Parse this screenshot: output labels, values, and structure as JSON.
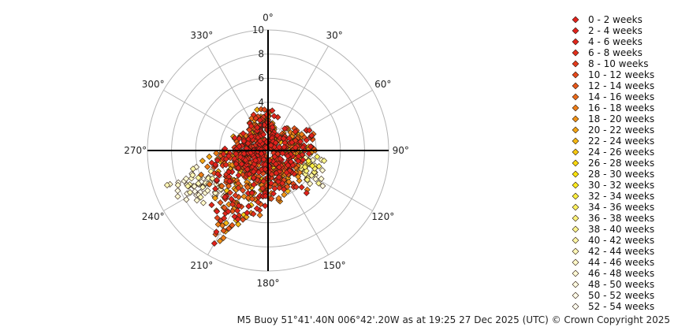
{
  "chart_data": {
    "type": "scatter",
    "subtype": "polar",
    "radial_axis": {
      "range": [
        0,
        10
      ],
      "ticks": [
        2,
        4,
        6,
        8,
        10
      ],
      "tick_labels": [
        "2",
        "4",
        "6",
        "8",
        "10"
      ]
    },
    "angular_axis": {
      "direction": "clockwise",
      "zero_at": "top",
      "ticks": [
        0,
        30,
        60,
        90,
        120,
        150,
        180,
        210,
        240,
        270,
        300,
        330
      ],
      "tick_labels": [
        "0°",
        "30°",
        "60°",
        "90°",
        "120°",
        "150°",
        "180°",
        "210°",
        "240°",
        "270°",
        "300°",
        "330°"
      ]
    },
    "grid": true,
    "legend_position": "right",
    "series_names": [
      "0 - 2 weeks",
      "2 - 4 weeks",
      "4 - 6 weeks",
      "6 - 8 weeks",
      "8 - 10 weeks",
      "10 - 12 weeks",
      "12 - 14 weeks",
      "14 - 16 weeks",
      "16 - 18 weeks",
      "18 - 20 weeks",
      "20 - 22 weeks",
      "22 - 24 weeks",
      "24 - 26 weeks",
      "26 - 28 weeks",
      "28 - 30 weeks",
      "30 - 32 weeks",
      "32 - 34 weeks",
      "34 - 36 weeks",
      "36 - 38 weeks",
      "38 - 40 weeks",
      "40 - 42 weeks",
      "42 - 44 weeks",
      "44 - 46 weeks",
      "46 - 48 weeks",
      "48 - 50 weeks",
      "50 - 52 weeks",
      "52 - 54 weeks"
    ],
    "series_colors": [
      "#e2211c",
      "#e2211c",
      "#e2261c",
      "#e32f1c",
      "#e4391c",
      "#e6481b",
      "#e8571a",
      "#eb6a19",
      "#ee7e18",
      "#f09216",
      "#f3a514",
      "#f5b812",
      "#f7c910",
      "#f9d90e",
      "#fae40c",
      "#fbec20",
      "#fcf040",
      "#fcf260",
      "#fdf47a",
      "#fdf690",
      "#fef7a6",
      "#fef8b8",
      "#fff9c8",
      "#fffad4",
      "#fffbe0",
      "#fffce8",
      "#fffdf0"
    ],
    "points_theta_r": [
      [
        200,
        6.1
      ],
      [
        204,
        5.9
      ],
      [
        207,
        5.6
      ],
      [
        212,
        5.1
      ],
      [
        216,
        4.6
      ],
      [
        219,
        4.2
      ],
      [
        223,
        3.8
      ],
      [
        228,
        4.4
      ],
      [
        233,
        4.9
      ],
      [
        238,
        4.1
      ],
      [
        243,
        3.6
      ],
      [
        248,
        3.2
      ],
      [
        253,
        2.9
      ],
      [
        258,
        2.6
      ],
      [
        262,
        2.3
      ],
      [
        267,
        1.9
      ],
      [
        272,
        1.6
      ],
      [
        277,
        1.4
      ],
      [
        285,
        1.2
      ],
      [
        295,
        1.1
      ],
      [
        305,
        1.0
      ],
      [
        320,
        1.3
      ],
      [
        335,
        2.1
      ],
      [
        345,
        2.6
      ],
      [
        352,
        2.8
      ],
      [
        0,
        2.5
      ],
      [
        8,
        2.1
      ],
      [
        18,
        1.6
      ],
      [
        35,
        1.4
      ],
      [
        50,
        1.8
      ],
      [
        60,
        2.3
      ],
      [
        68,
        3.0
      ],
      [
        75,
        3.3
      ],
      [
        82,
        3.0
      ],
      [
        90,
        2.5
      ],
      [
        97,
        2.6
      ],
      [
        105,
        3.0
      ],
      [
        112,
        3.4
      ],
      [
        118,
        3.6
      ],
      [
        125,
        3.2
      ],
      [
        132,
        2.9
      ],
      [
        140,
        2.6
      ],
      [
        148,
        2.4
      ],
      [
        155,
        2.7
      ],
      [
        162,
        3.0
      ],
      [
        170,
        3.2
      ],
      [
        177,
        3.0
      ],
      [
        184,
        3.4
      ],
      [
        190,
        3.8
      ],
      [
        195,
        4.2
      ],
      [
        210,
        3.4
      ],
      [
        220,
        2.8
      ],
      [
        230,
        2.2
      ],
      [
        240,
        2.6
      ],
      [
        250,
        2.1
      ],
      [
        260,
        1.7
      ],
      [
        270,
        1.2
      ],
      [
        280,
        0.9
      ],
      [
        290,
        0.6
      ],
      [
        315,
        0.7
      ],
      [
        340,
        1.5
      ],
      [
        10,
        1.2
      ],
      [
        45,
        0.9
      ],
      [
        80,
        1.5
      ],
      [
        100,
        1.9
      ],
      [
        120,
        2.1
      ],
      [
        140,
        1.8
      ],
      [
        160,
        2.0
      ],
      [
        180,
        2.2
      ],
      [
        200,
        2.6
      ],
      [
        215,
        2.3
      ],
      [
        225,
        1.9
      ],
      [
        235,
        1.5
      ],
      [
        245,
        1.3
      ],
      [
        255,
        1.0
      ],
      [
        265,
        0.8
      ],
      [
        195,
        1.5
      ],
      [
        175,
        1.4
      ],
      [
        150,
        1.3
      ],
      [
        130,
        1.1
      ],
      [
        110,
        0.9
      ],
      [
        85,
        0.7
      ],
      [
        60,
        0.6
      ],
      [
        30,
        0.5
      ],
      [
        350,
        0.7
      ],
      [
        325,
        0.4
      ],
      [
        205,
        0.8
      ],
      [
        225,
        1.1
      ],
      [
        245,
        0.6
      ],
      [
        190,
        2.9
      ],
      [
        205,
        3.9
      ],
      [
        240,
        5.6
      ],
      [
        244,
        6.4
      ],
      [
        247,
        7.3
      ],
      [
        249,
        8.0
      ],
      [
        251,
        8.6
      ],
      [
        246,
        8.2
      ],
      [
        242,
        7.6
      ],
      [
        238,
        7.0
      ],
      [
        236,
        6.3
      ],
      [
        250,
        7.4
      ],
      [
        253,
        6.6
      ],
      [
        257,
        6.1
      ],
      [
        261,
        5.5
      ],
      [
        264,
        4.9
      ],
      [
        267,
        4.3
      ],
      [
        270,
        3.7
      ],
      [
        255,
        5.2
      ],
      [
        250,
        5.9
      ],
      [
        245,
        4.6
      ],
      [
        234,
        5.4
      ],
      [
        228,
        5.9
      ],
      [
        222,
        5.3
      ],
      [
        218,
        6.0
      ],
      [
        230,
        3.2
      ],
      [
        236,
        3.9
      ],
      [
        258,
        3.9
      ],
      [
        262,
        3.3
      ],
      [
        275,
        2.8
      ],
      [
        280,
        2.2
      ],
      [
        286,
        2.7
      ],
      [
        292,
        3.1
      ],
      [
        298,
        2.6
      ],
      [
        304,
        2.2
      ],
      [
        310,
        1.8
      ],
      [
        318,
        2.3
      ],
      [
        326,
        2.7
      ],
      [
        333,
        3.0
      ],
      [
        338,
        3.2
      ],
      [
        345,
        3.5
      ],
      [
        355,
        3.4
      ],
      [
        3,
        3.2
      ],
      [
        10,
        2.9
      ],
      [
        40,
        2.4
      ],
      [
        55,
        2.9
      ],
      [
        62,
        3.6
      ],
      [
        70,
        4.0
      ],
      [
        76,
        3.8
      ],
      [
        85,
        3.6
      ],
      [
        95,
        3.5
      ],
      [
        102,
        3.8
      ],
      [
        108,
        4.1
      ],
      [
        115,
        4.3
      ],
      [
        121,
        4.6
      ],
      [
        127,
        4.0
      ],
      [
        134,
        3.6
      ],
      [
        118,
        5.0
      ],
      [
        123,
        5.4
      ],
      [
        110,
        4.8
      ],
      [
        100,
        4.5
      ],
      [
        90,
        3.9
      ],
      [
        135,
        4.6
      ],
      [
        145,
        3.7
      ],
      [
        152,
        3.4
      ],
      [
        160,
        3.9
      ],
      [
        168,
        4.2
      ],
      [
        176,
        4.0
      ],
      [
        183,
        4.6
      ],
      [
        188,
        5.0
      ],
      [
        193,
        5.4
      ],
      [
        198,
        5.8
      ],
      [
        202,
        6.6
      ],
      [
        206,
        7.0
      ],
      [
        209,
        7.6
      ],
      [
        212,
        8.2
      ],
      [
        210,
        8.9
      ],
      [
        208,
        8.5
      ],
      [
        214,
        7.4
      ],
      [
        213,
        6.7
      ],
      [
        217,
        7.0
      ],
      [
        220,
        6.6
      ],
      [
        226,
        6.5
      ],
      [
        231,
        6.9
      ],
      [
        235,
        7.2
      ],
      [
        239,
        7.9
      ],
      [
        243,
        8.4
      ]
    ]
  },
  "footer": "M5 Buoy 51°41'.40N 006°42'.20W as at 19:25 27 Dec 2025 (UTC) © Crown Copyright 2025"
}
